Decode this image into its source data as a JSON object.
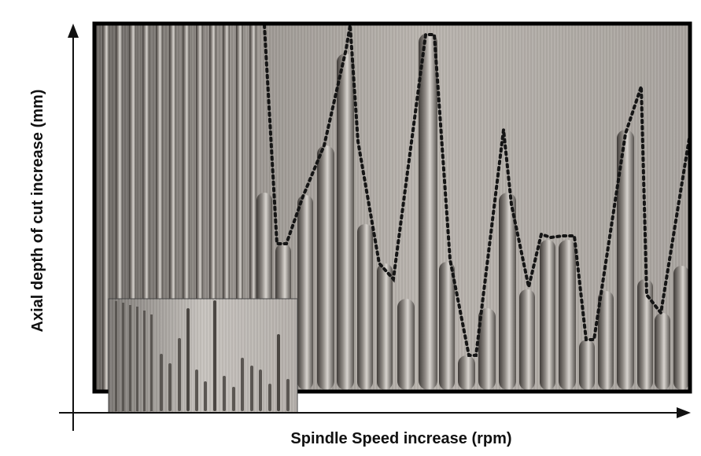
{
  "figure": {
    "x_axis_label": "Spindle Speed increase (rpm)",
    "y_axis_label": "Axial depth of cut increase (mm)",
    "photo_description_icon": "machined-slots-photo",
    "inset_icon": "inset-photo",
    "boundary_style": "dotted"
  },
  "colors": {
    "axis": "#111111",
    "frame": "#000000",
    "photo_light": "#c9c5c0",
    "photo_mid": "#8f8a85",
    "photo_dark": "#4e4a46",
    "boundary": "#151515"
  }
}
